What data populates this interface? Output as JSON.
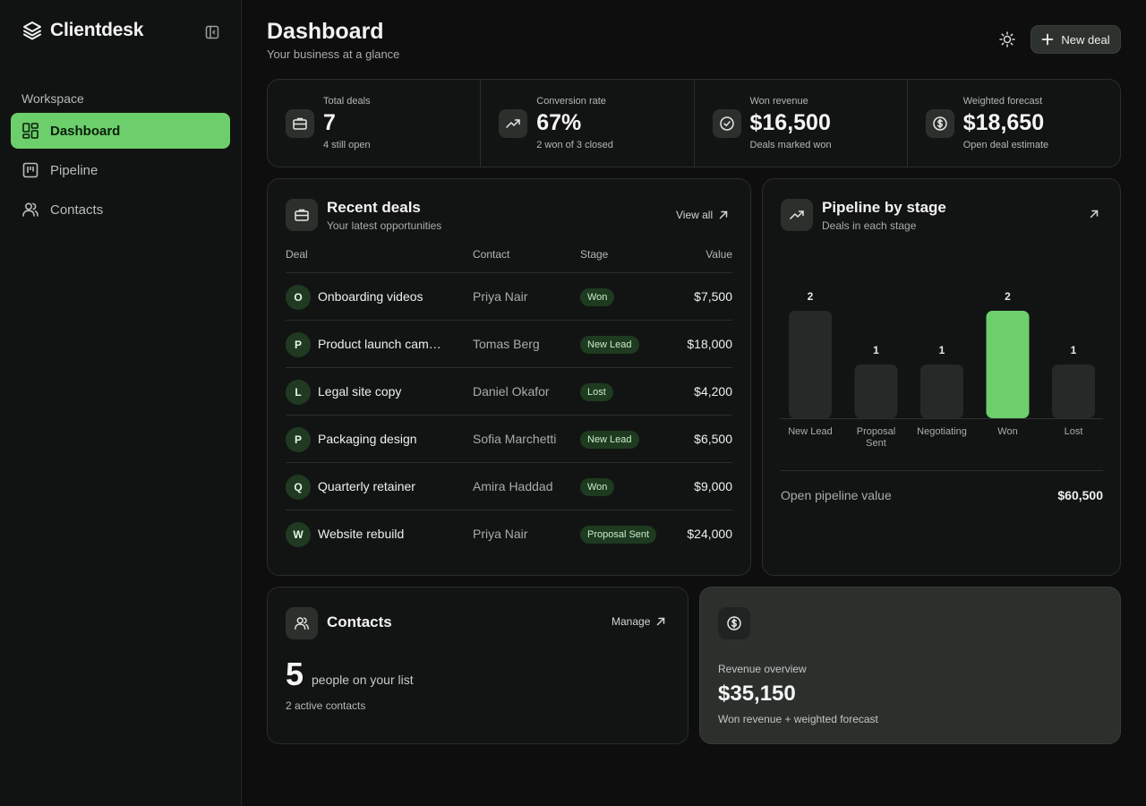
{
  "app": {
    "name": "Clientdesk"
  },
  "sidebar": {
    "section_label": "Workspace",
    "items": [
      {
        "label": "Dashboard",
        "icon": "dashboard-icon",
        "active": true
      },
      {
        "label": "Pipeline",
        "icon": "pipeline-icon",
        "active": false
      },
      {
        "label": "Contacts",
        "icon": "contacts-icon",
        "active": false
      }
    ]
  },
  "header": {
    "title": "Dashboard",
    "subtitle": "Your business at a glance",
    "new_deal_label": "New deal"
  },
  "stats": [
    {
      "label": "Total deals",
      "value": "7",
      "sub": "4 still open",
      "icon": "briefcase-icon"
    },
    {
      "label": "Conversion rate",
      "value": "67%",
      "sub": "2 won of 3 closed",
      "icon": "trending-up-icon"
    },
    {
      "label": "Won revenue",
      "value": "$16,500",
      "sub": "Deals marked won",
      "icon": "check-circle-icon"
    },
    {
      "label": "Weighted forecast",
      "value": "$18,650",
      "sub": "Open deal estimate",
      "icon": "dollar-circle-icon"
    }
  ],
  "recent_deals": {
    "title": "Recent deals",
    "subtitle": "Your latest opportunities",
    "link_label": "View all",
    "columns": [
      "Deal",
      "Contact",
      "Stage",
      "Value"
    ],
    "rows": [
      {
        "initial": "O",
        "name": "Onboarding videos",
        "contact": "Priya Nair",
        "stage": "Won",
        "value": "$7,500"
      },
      {
        "initial": "P",
        "name": "Product launch campaign",
        "contact": "Tomas Berg",
        "stage": "New Lead",
        "value": "$18,000"
      },
      {
        "initial": "L",
        "name": "Legal site copy",
        "contact": "Daniel Okafor",
        "stage": "Lost",
        "value": "$4,200"
      },
      {
        "initial": "P",
        "name": "Packaging design",
        "contact": "Sofia Marchetti",
        "stage": "New Lead",
        "value": "$6,500"
      },
      {
        "initial": "Q",
        "name": "Quarterly retainer",
        "contact": "Amira Haddad",
        "stage": "Won",
        "value": "$9,000"
      },
      {
        "initial": "W",
        "name": "Website rebuild",
        "contact": "Priya Nair",
        "stage": "Proposal Sent",
        "value": "$24,000"
      }
    ]
  },
  "pipeline": {
    "title": "Pipeline by stage",
    "subtitle": "Deals in each stage",
    "total_label": "Open pipeline value",
    "total_value": "$60,500"
  },
  "chart_data": {
    "type": "bar",
    "categories": [
      "New Lead",
      "Proposal Sent",
      "Negotiating",
      "Won",
      "Lost"
    ],
    "values": [
      2,
      1,
      1,
      2,
      1
    ],
    "highlight": "Won",
    "title": "",
    "xlabel": "",
    "ylabel": "",
    "ylim": [
      0,
      2
    ],
    "grid": false,
    "colors": {
      "default": "#262927",
      "highlight": "#6ccf6b"
    }
  },
  "contacts_card": {
    "title": "Contacts",
    "link_label": "Manage",
    "count": "5",
    "count_text": "people on your list",
    "sub": "2 active contacts"
  },
  "revenue_card": {
    "label": "Revenue overview",
    "value": "$35,150",
    "sub": "Won revenue + weighted forecast",
    "icon": "dollar-circle-icon"
  },
  "colors": {
    "accent": "#6ccf6b",
    "background": "#0d0e0d"
  }
}
